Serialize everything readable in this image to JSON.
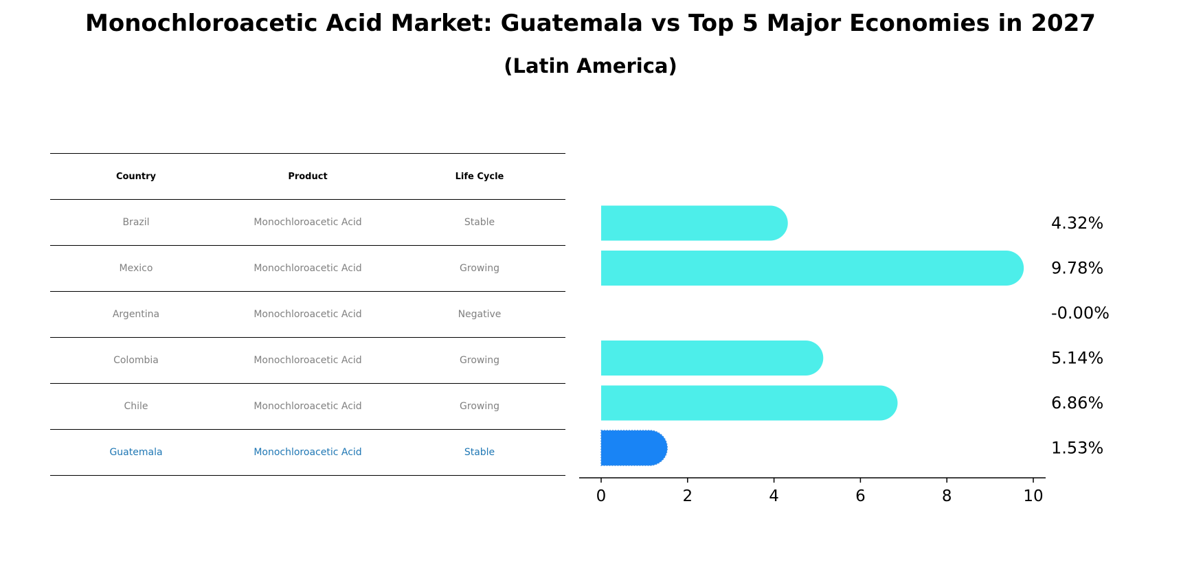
{
  "header": {
    "title": "Monochloroacetic Acid Market: Guatemala vs Top 5 Major Economies in 2027",
    "subtitle": "(Latin America)"
  },
  "table": {
    "columns": [
      "Country",
      "Product",
      "Life Cycle"
    ],
    "rows": [
      {
        "country": "Brazil",
        "product": "Monochloroacetic Acid",
        "life_cycle": "Stable"
      },
      {
        "country": "Mexico",
        "product": "Monochloroacetic Acid",
        "life_cycle": "Growing"
      },
      {
        "country": "Argentina",
        "product": "Monochloroacetic Acid",
        "life_cycle": "Negative"
      },
      {
        "country": "Colombia",
        "product": "Monochloroacetic Acid",
        "life_cycle": "Growing"
      },
      {
        "country": "Chile",
        "product": "Monochloroacetic Acid",
        "life_cycle": "Growing"
      },
      {
        "country": "Guatemala",
        "product": "Monochloroacetic Acid",
        "life_cycle": "Stable"
      }
    ],
    "highlight_row": "Guatemala",
    "text_color": "#808080",
    "highlight_color": "#1f77b4"
  },
  "chart_data": {
    "type": "bar",
    "orientation": "horizontal",
    "categories": [
      "Brazil",
      "Mexico",
      "Argentina",
      "Colombia",
      "Chile",
      "Guatemala"
    ],
    "values": [
      4.32,
      9.78,
      -0.0,
      5.14,
      6.86,
      1.53
    ],
    "value_labels": [
      "4.32%",
      "9.78%",
      "-0.00%",
      "5.14%",
      "6.86%",
      "1.53%"
    ],
    "xlim": [
      -0.5,
      10.25
    ],
    "xticks": [
      0,
      2,
      4,
      6,
      8,
      10
    ],
    "xtick_labels": [
      "0",
      "2",
      "4",
      "6",
      "8",
      "10"
    ],
    "colors": {
      "default": "#4deeea",
      "highlight": "#1984f5"
    },
    "highlight": "Guatemala",
    "grid": false,
    "legend": "none"
  }
}
